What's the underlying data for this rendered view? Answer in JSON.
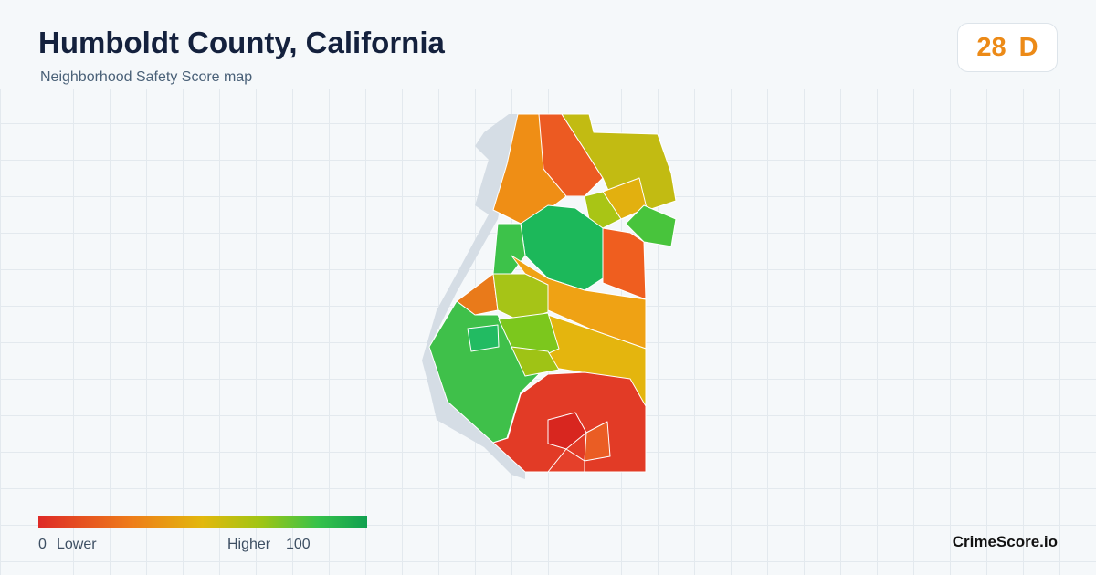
{
  "header": {
    "title": "Humboldt County, California",
    "subtitle": "Neighborhood Safety Score map"
  },
  "score": {
    "value": 28,
    "grade": "D"
  },
  "legend": {
    "min": 0,
    "min_label": "Lower",
    "max_label": "Higher",
    "max": 100
  },
  "brand": "CrimeScore.io"
}
